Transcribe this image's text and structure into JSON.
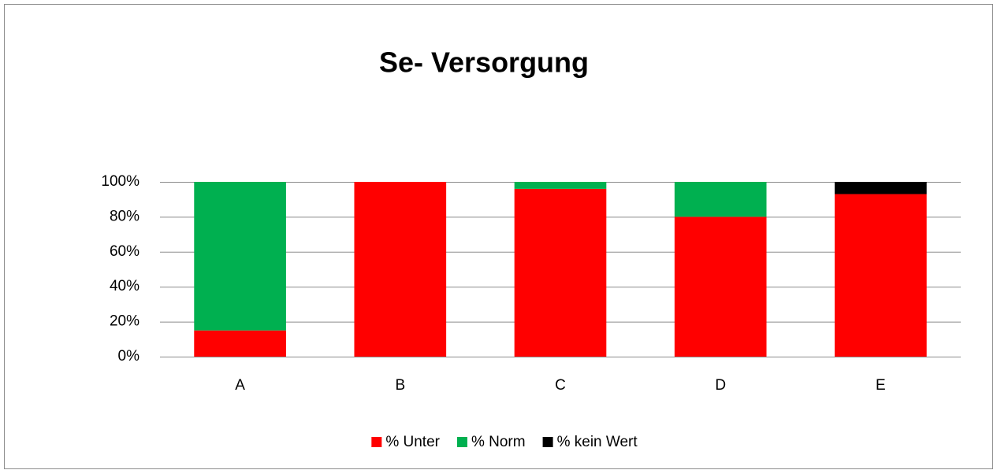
{
  "chart_data": {
    "type": "stacked_bar",
    "title": "Se- Versorgung",
    "categories": [
      "A",
      "B",
      "C",
      "D",
      "E"
    ],
    "series": [
      {
        "name": "% Unter",
        "color": "#ff0000",
        "values": [
          15,
          100,
          96,
          80,
          93
        ]
      },
      {
        "name": "% Norm",
        "color": "#00b050",
        "values": [
          85,
          0,
          4,
          20,
          0
        ]
      },
      {
        "name": "% kein Wert",
        "color": "#000000",
        "values": [
          0,
          0,
          0,
          0,
          7
        ]
      }
    ],
    "ylim": [
      0,
      100
    ],
    "yticks": [
      {
        "value": 0,
        "label": "0%"
      },
      {
        "value": 20,
        "label": "20%"
      },
      {
        "value": 40,
        "label": "40%"
      },
      {
        "value": 60,
        "label": "60%"
      },
      {
        "value": 80,
        "label": "80%"
      },
      {
        "value": 100,
        "label": "100%"
      }
    ],
    "grid": true,
    "legend": "bottom"
  }
}
